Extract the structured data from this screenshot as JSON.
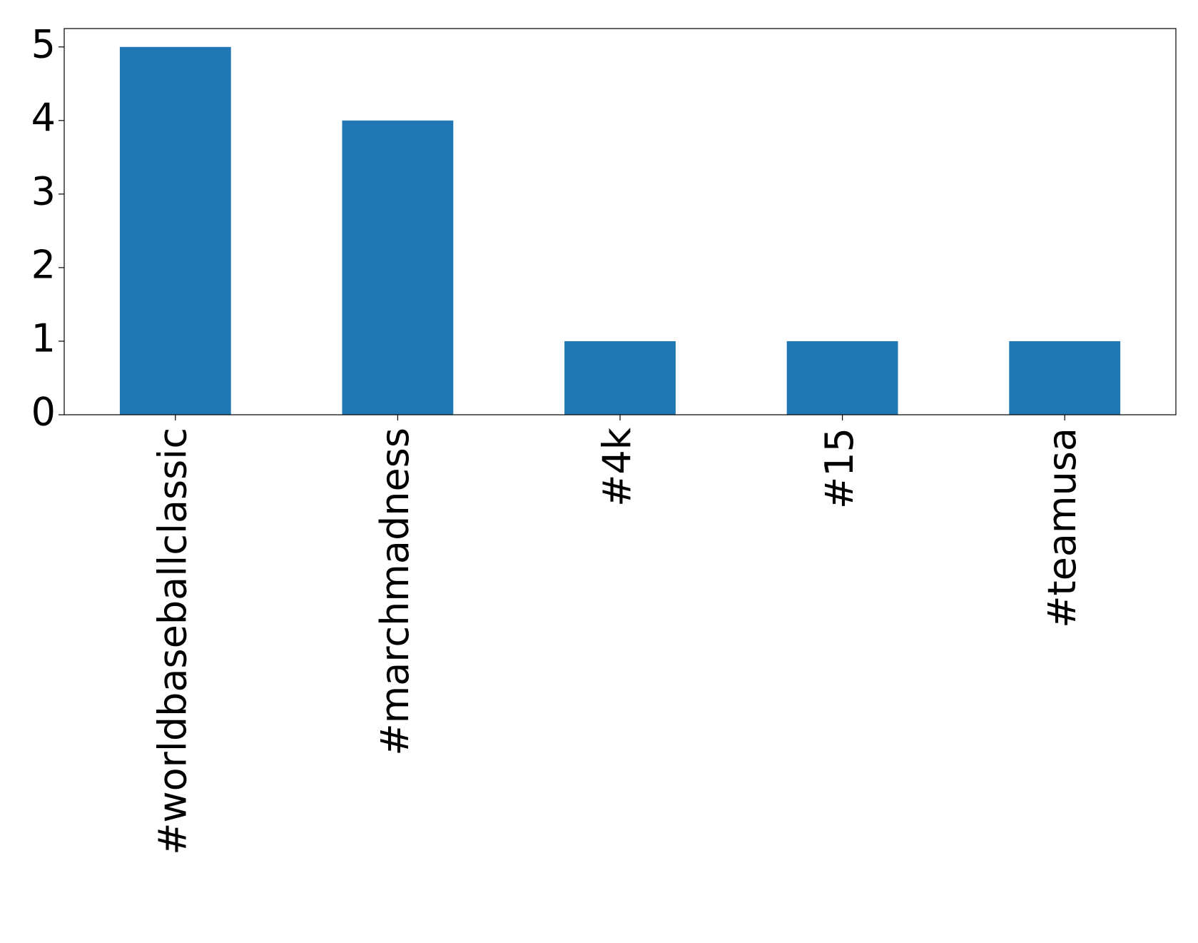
{
  "chart_data": {
    "type": "bar",
    "categories": [
      "#worldbaseballclassic",
      "#marchmadness",
      "#4k",
      "#15",
      "#teamusa"
    ],
    "values": [
      5,
      4,
      1,
      1,
      1
    ],
    "color": "#1f77b4",
    "ylim": [
      0,
      5.25
    ],
    "yticks": [
      0,
      1,
      2,
      3,
      4,
      5
    ],
    "grid": false
  }
}
